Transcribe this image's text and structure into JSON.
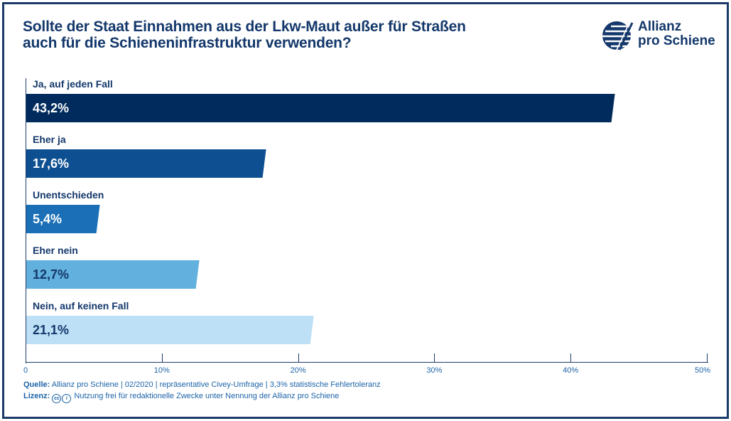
{
  "title_line1": "Sollte der Staat Einnahmen aus der Lkw-Maut außer für Straßen",
  "title_line2": "auch für die Schieneninfrastruktur verwenden?",
  "logo": {
    "line1": "Allianz",
    "line2": "pro Schiene"
  },
  "chart_data": {
    "type": "bar",
    "orientation": "horizontal",
    "categories": [
      "Ja, auf jeden Fall",
      "Eher ja",
      "Unentschieden",
      "Eher nein",
      "Nein, auf keinen Fall"
    ],
    "values": [
      43.2,
      17.6,
      5.4,
      12.7,
      21.1
    ],
    "value_labels": [
      "43,2%",
      "17,6%",
      "5,4%",
      "12,7%",
      "21,1%"
    ],
    "colors": [
      "#002b5c",
      "#0d4f91",
      "#1a6fb6",
      "#62b0dd",
      "#bde0f6"
    ],
    "value_text_colors": [
      "#ffffff",
      "#ffffff",
      "#ffffff",
      "#14386b",
      "#14386b"
    ],
    "xlim": [
      0,
      50
    ],
    "ticks": [
      0,
      10,
      20,
      30,
      40,
      50
    ],
    "tick_labels": [
      "0",
      "10%",
      "20%",
      "30%",
      "40%",
      "50%"
    ],
    "grid": false,
    "legend": "none"
  },
  "footer": {
    "source_label": "Quelle:",
    "source_text": "Allianz pro Schiene | 02/2020 | repräsentative Civey-Umfrage | 3,3% statistische Fehlertoleranz",
    "license_label": "Lizenz:",
    "license_icons": [
      "cc-icon",
      "by-icon"
    ],
    "license_text": "Nutzung frei für redaktionelle Zwecke unter Nennung der Allianz pro Schiene"
  },
  "colors": {
    "frame": "#1c3a69",
    "title": "#14386b",
    "axis_text": "#1c63a8"
  }
}
